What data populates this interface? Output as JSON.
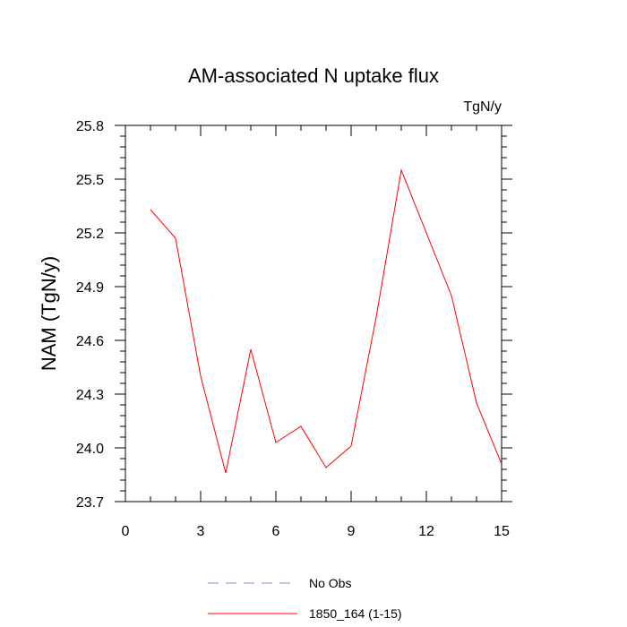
{
  "chart_data": {
    "type": "line",
    "title": "AM-associated N uptake flux",
    "units_label": "TgN/y",
    "ylabel": "NAM  (TgN/y)",
    "xlabel": "",
    "xlim": [
      0,
      15
    ],
    "ylim": [
      23.7,
      25.8
    ],
    "x_ticks": [
      0,
      3,
      6,
      9,
      12,
      15
    ],
    "x_tick_labels": [
      "0",
      "3",
      "6",
      "9",
      "12",
      "15"
    ],
    "y_ticks": [
      23.7,
      24.0,
      24.3,
      24.6,
      24.9,
      25.2,
      25.5,
      25.8
    ],
    "y_tick_labels": [
      "23.7",
      "24.0",
      "24.3",
      "24.6",
      "24.9",
      "25.2",
      "25.5",
      "25.8"
    ],
    "grid": false,
    "legend_position": "bottom",
    "series": [
      {
        "name": "1850_164 (1-15)",
        "color": "#ff0000",
        "style": "solid",
        "x": [
          1,
          2,
          3,
          4,
          5,
          6,
          7,
          8,
          9,
          10,
          11,
          12,
          13,
          14,
          15
        ],
        "y": [
          25.33,
          25.17,
          24.4,
          23.86,
          24.55,
          24.03,
          24.12,
          23.89,
          24.01,
          24.73,
          25.55,
          25.2,
          24.85,
          24.25,
          23.91
        ]
      }
    ],
    "legend": [
      {
        "label": "No Obs",
        "color": "#8888ee",
        "style": "dashed"
      },
      {
        "label": "1850_164 (1-15)",
        "color": "#ff0000",
        "style": "solid"
      }
    ]
  }
}
